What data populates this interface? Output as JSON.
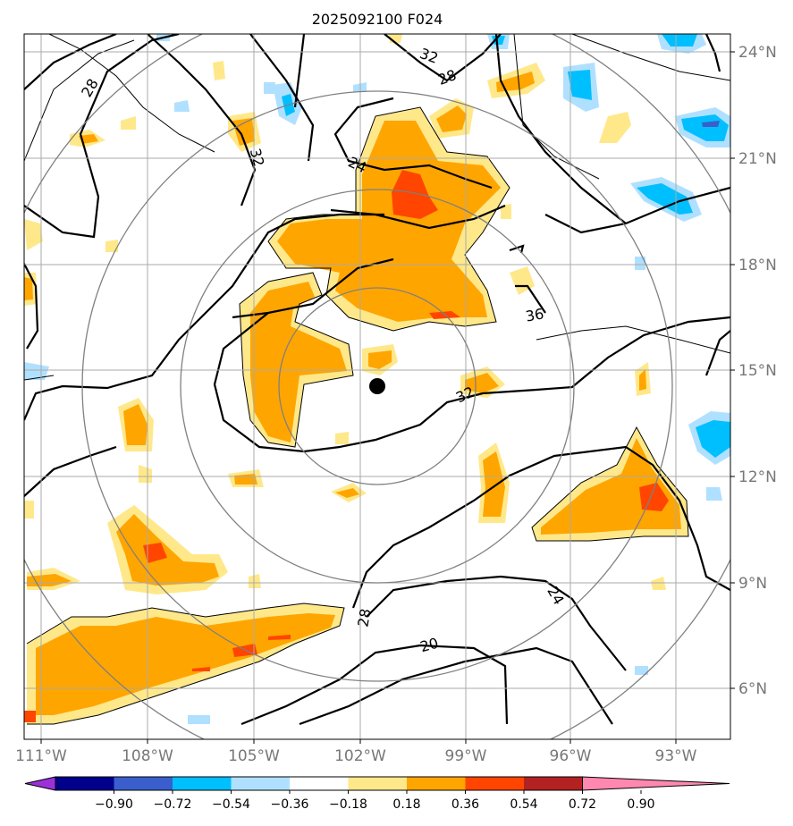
{
  "title": "2025092100 F024",
  "lat_labels": [
    "24°N",
    "21°N",
    "18°N",
    "15°N",
    "12°N",
    "9°N",
    "6°N"
  ],
  "lon_labels": [
    "111°W",
    "108°W",
    "105°W",
    "102°W",
    "99°W",
    "96°W",
    "93°W"
  ],
  "contour_labels": [
    "28",
    "32",
    "28",
    "24",
    "32",
    "36",
    "32",
    "28",
    "20",
    "24"
  ],
  "center_marker": {
    "lon": -101.5,
    "lat": 14.5
  },
  "colorbar": {
    "ticks": [
      "−0.90",
      "−0.72",
      "−0.54",
      "−0.36",
      "−0.18",
      "0.18",
      "0.36",
      "0.54",
      "0.72",
      "0.90"
    ],
    "colors": [
      "#9b30d9",
      "#00008b",
      "#3a5fcd",
      "#00bfff",
      "#b0e0ff",
      "#ffffff",
      "#ffe88a",
      "#ffa500",
      "#ff4500",
      "#b22222",
      "#ff88b0"
    ]
  },
  "colors": {
    "orange": "#ffa500",
    "yellow": "#ffe88a",
    "red": "#ff4500",
    "lightblue": "#b0e0ff",
    "cyan": "#00bfff",
    "ring": "#808080",
    "grid": "#aaaaaa"
  }
}
